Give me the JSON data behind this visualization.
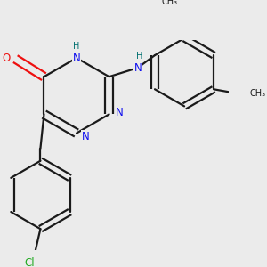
{
  "bg_color": "#ebebeb",
  "bond_color": "#1a1a1a",
  "bond_width": 1.6,
  "atom_colors": {
    "N": "#1010ee",
    "O": "#ee1010",
    "Cl": "#22aa22",
    "H": "#007070",
    "C": "#1a1a1a"
  },
  "font_size_atom": 8.5,
  "font_size_small": 7.0,
  "font_size_methyl": 7.5
}
